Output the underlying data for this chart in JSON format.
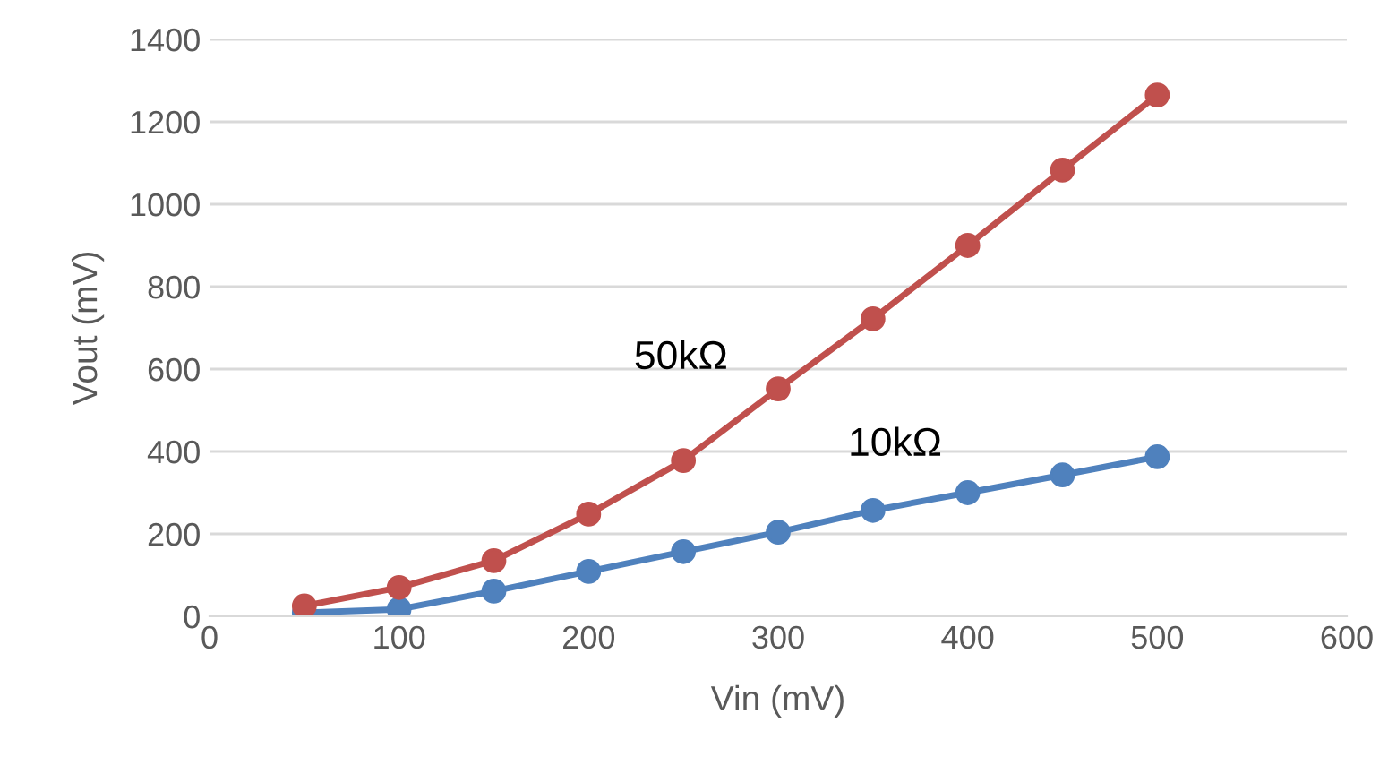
{
  "chart_data": {
    "type": "line",
    "xlabel": "Vin (mV)",
    "ylabel": "Vout (mV)",
    "x": [
      50,
      100,
      150,
      200,
      250,
      300,
      350,
      400,
      450,
      500
    ],
    "series": [
      {
        "name": "10kΩ",
        "color": "#4f81bd",
        "values": [
          9,
          17,
          61,
          109,
          157,
          204,
          257,
          300,
          343,
          387
        ]
      },
      {
        "name": "50kΩ",
        "color": "#c0504d",
        "values": [
          25,
          70,
          135,
          248,
          378,
          552,
          722,
          900,
          1083,
          1265
        ]
      }
    ],
    "xlim": [
      0,
      600
    ],
    "xticks": [
      0,
      100,
      200,
      300,
      400,
      500,
      600
    ],
    "ylim": [
      0,
      1400
    ],
    "yticks": [
      0,
      200,
      400,
      600,
      800,
      1000,
      1200,
      1400
    ],
    "grid": "y",
    "marker": "circle",
    "line_style": "solid",
    "legend": false
  }
}
